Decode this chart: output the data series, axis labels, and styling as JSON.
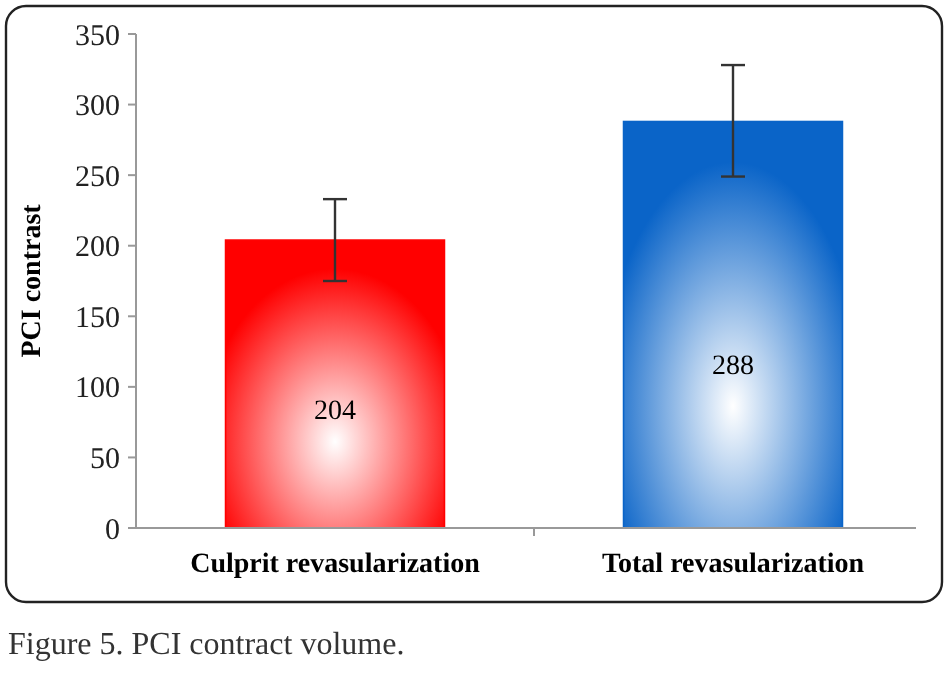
{
  "chart_data": {
    "type": "bar",
    "ylabel": "PCI contrast",
    "categories": [
      "Culprit revasularization",
      "Total revasularization"
    ],
    "values": [
      204,
      288
    ],
    "colors": [
      "#ff0000",
      "#0a64c8"
    ],
    "errors": [
      [
        175,
        233
      ],
      [
        249,
        328
      ]
    ],
    "ylim": [
      0,
      350
    ],
    "yticks": [
      0,
      50,
      100,
      150,
      200,
      250,
      300,
      350
    ],
    "grid": false,
    "data_labels": true,
    "annotations": [
      "Figure 5. PCI contract volume."
    ]
  }
}
